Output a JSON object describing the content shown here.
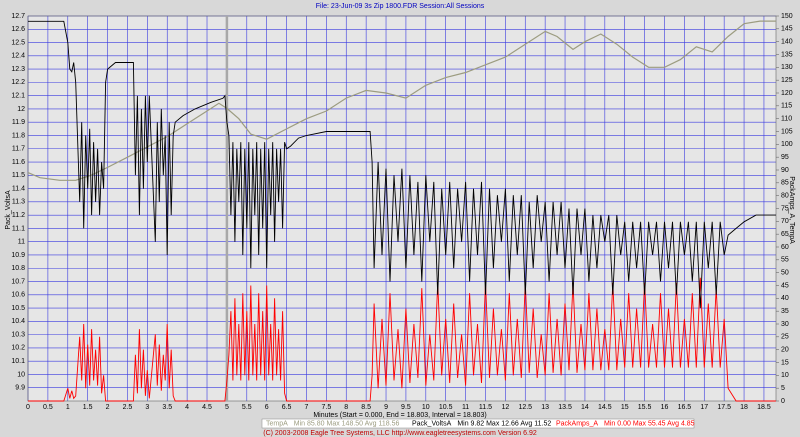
{
  "chart_data": {
    "type": "line",
    "title": "File: 23-Jun-09 3s Zip 1800.FDR   Session:All Sessions",
    "x_label": "Minutes (Start = 0.000, End = 18.803, Interval = 18.803)",
    "y_label": "Pack_VoltsA",
    "y2_label": "PackAmps_A, TempA",
    "footer": "(C) 2003-2008 Eagle Tree Systems, LLC    http://www.eagletreesystems.com    Version 6.92",
    "grid": true,
    "cursor_x": 5,
    "xlim": [
      0,
      18.803
    ],
    "xticks": [
      0,
      0.5,
      1,
      1.5,
      2,
      2.5,
      3,
      3.5,
      4,
      4.5,
      5,
      5.5,
      6,
      6.5,
      7,
      7.5,
      8,
      8.5,
      9,
      9.5,
      10,
      10.5,
      11,
      11.5,
      12,
      12.5,
      13,
      13.5,
      14,
      14.5,
      15,
      15.5,
      16,
      16.5,
      17,
      17.5,
      18,
      18.5
    ],
    "ylim": [
      9.8,
      12.7
    ],
    "yticks": [
      9.9,
      10,
      10.1,
      10.2,
      10.3,
      10.4,
      10.5,
      10.6,
      10.7,
      10.8,
      10.9,
      11,
      11.1,
      11.2,
      11.3,
      11.4,
      11.5,
      11.6,
      11.7,
      11.8,
      11.9,
      12,
      12.1,
      12.2,
      12.3,
      12.4,
      12.5,
      12.6,
      12.7
    ],
    "y2lim": [
      0,
      150
    ],
    "y2ticks": [
      0,
      5,
      10,
      15,
      20,
      25,
      30,
      35,
      40,
      45,
      50,
      55,
      60,
      65,
      70,
      75,
      80,
      85,
      90,
      95,
      100,
      105,
      110,
      115,
      120,
      125,
      130,
      135,
      140,
      145,
      150
    ],
    "x": [
      0,
      0.9,
      1,
      1.05,
      1.1,
      1.15,
      1.2,
      1.3,
      1.35,
      1.4,
      1.45,
      1.5,
      1.55,
      1.6,
      1.65,
      1.7,
      1.75,
      1.8,
      1.85,
      1.9,
      1.95,
      2,
      2.2,
      2.65,
      2.7,
      2.75,
      2.8,
      2.85,
      2.9,
      2.95,
      3,
      3.05,
      3.2,
      3.25,
      3.3,
      3.35,
      3.4,
      3.45,
      3.5,
      3.55,
      3.6,
      3.65,
      3.7,
      3.9,
      4.2,
      4.6,
      4.9,
      4.95,
      5,
      5.05,
      5.1,
      5.15,
      5.2,
      5.25,
      5.3,
      5.35,
      5.4,
      5.45,
      5.5,
      5.55,
      5.6,
      5.65,
      5.7,
      5.75,
      5.8,
      5.85,
      5.9,
      5.95,
      6,
      6.05,
      6.1,
      6.15,
      6.2,
      6.25,
      6.3,
      6.35,
      6.4,
      6.45,
      6.5,
      6.6,
      6.8,
      7,
      7.5,
      8.6,
      8.65,
      8.7,
      8.8,
      8.9,
      9,
      9.1,
      9.2,
      9.3,
      9.4,
      9.5,
      9.6,
      9.7,
      9.8,
      9.9,
      10,
      10.1,
      10.2,
      10.3,
      10.4,
      10.5,
      10.6,
      10.7,
      10.8,
      10.9,
      11,
      11.1,
      11.2,
      11.3,
      11.4,
      11.5,
      11.6,
      11.7,
      11.8,
      11.9,
      12,
      12.1,
      12.2,
      12.3,
      12.4,
      12.5,
      12.6,
      12.7,
      12.8,
      12.9,
      13,
      13.1,
      13.2,
      13.3,
      13.4,
      13.5,
      13.6,
      13.7,
      13.8,
      13.9,
      14,
      14.1,
      14.2,
      14.3,
      14.4,
      14.5,
      14.6,
      14.7,
      14.8,
      14.9,
      15,
      15.1,
      15.2,
      15.3,
      15.4,
      15.5,
      15.6,
      15.7,
      15.8,
      15.9,
      16,
      16.1,
      16.2,
      16.3,
      16.4,
      16.5,
      16.6,
      16.7,
      16.8,
      16.9,
      17,
      17.1,
      17.2,
      17.3,
      17.4,
      17.5,
      17.6,
      17.8,
      18,
      18.3,
      18.8
    ],
    "series": [
      {
        "name": "TempA",
        "color": "#9c9c80",
        "axis": "y2",
        "x": [
          0,
          0.3,
          0.8,
          1.2,
          1.6,
          2,
          2.5,
          3,
          3.5,
          4,
          4.5,
          4.8,
          5,
          5.3,
          5.6,
          6,
          6.5,
          7,
          7.5,
          8,
          8.5,
          9,
          9.5,
          10,
          10.5,
          11,
          11.5,
          12,
          12.5,
          13,
          13.3,
          13.7,
          14,
          14.4,
          14.8,
          15.2,
          15.6,
          16,
          16.4,
          16.8,
          17.2,
          17.6,
          18,
          18.4,
          18.8
        ],
        "values": [
          89,
          87,
          86,
          86,
          88,
          91,
          95,
          99,
          103,
          108,
          113,
          116,
          114,
          110,
          104,
          102,
          106,
          110,
          113,
          118,
          121,
          120,
          118,
          123,
          126,
          128,
          131,
          134,
          139,
          144,
          142,
          137,
          140,
          143,
          139,
          134,
          130,
          130,
          133,
          138,
          136,
          142,
          147,
          148,
          148
        ]
      },
      {
        "name": "Pack_VoltsA",
        "color": "#000000",
        "values": [
          12.66,
          12.66,
          12.5,
          12.3,
          12.28,
          12.35,
          12.2,
          11.3,
          11.9,
          11.1,
          11.8,
          11.4,
          11.85,
          11.2,
          11.75,
          11.3,
          11.7,
          11.2,
          11.6,
          11.4,
          12.2,
          12.3,
          12.35,
          12.35,
          11.5,
          12.1,
          11.2,
          12.0,
          11.4,
          12.1,
          11.6,
          12.1,
          11.0,
          11.9,
          11.3,
          12.0,
          11.5,
          11.8,
          10.9,
          11.9,
          11.2,
          11.8,
          11.9,
          11.95,
          12.0,
          12.05,
          12.08,
          12.1,
          11.9,
          11.8,
          11.2,
          11.75,
          11.0,
          11.7,
          11.3,
          11.75,
          10.9,
          11.7,
          11.1,
          11.75,
          10.8,
          11.7,
          11.2,
          11.75,
          10.9,
          11.7,
          11.1,
          11.75,
          10.8,
          11.7,
          11.2,
          11.75,
          11.0,
          11.7,
          11.3,
          11.7,
          11.1,
          11.75,
          11.7,
          11.72,
          11.78,
          11.8,
          11.83,
          11.83,
          11.6,
          10.8,
          11.6,
          10.9,
          11.55,
          10.7,
          11.5,
          11.0,
          11.55,
          10.8,
          11.5,
          10.9,
          11.45,
          10.7,
          11.5,
          11.0,
          11.45,
          10.6,
          11.4,
          10.9,
          11.45,
          10.8,
          11.4,
          11.0,
          11.45,
          10.7,
          11.4,
          10.9,
          11.45,
          10.6,
          11.4,
          10.8,
          11.35,
          11.0,
          11.4,
          10.7,
          11.35,
          10.9,
          11.35,
          10.6,
          11.3,
          10.8,
          11.35,
          11.0,
          11.3,
          10.7,
          11.3,
          10.9,
          11.3,
          10.8,
          11.25,
          10.6,
          11.25,
          10.9,
          11.25,
          10.7,
          11.2,
          10.8,
          11.2,
          11.0,
          11.2,
          10.6,
          11.2,
          10.9,
          11.15,
          10.7,
          11.15,
          10.8,
          11.15,
          10.6,
          11.15,
          10.9,
          11.15,
          10.7,
          11.15,
          10.8,
          11.15,
          10.6,
          11.15,
          10.9,
          11.15,
          10.7,
          11.15,
          10.5,
          11.15,
          10.8,
          11.15,
          10.6,
          11.15,
          10.9,
          11.05,
          11.1,
          11.15,
          11.2,
          11.2
        ]
      },
      {
        "name": "PackAmps_A",
        "color": "#ff0000",
        "axis": "y2",
        "values": [
          0,
          0,
          5,
          1,
          4,
          1,
          2,
          25,
          8,
          30,
          5,
          22,
          6,
          28,
          8,
          20,
          6,
          25,
          3,
          10,
          0,
          0,
          0,
          0,
          18,
          3,
          28,
          5,
          20,
          2,
          12,
          1,
          26,
          6,
          22,
          4,
          18,
          8,
          30,
          5,
          20,
          2,
          0,
          0,
          0,
          0,
          0,
          0,
          8,
          18,
          35,
          8,
          40,
          10,
          30,
          8,
          42,
          10,
          35,
          8,
          45,
          10,
          30,
          8,
          42,
          10,
          35,
          8,
          45,
          10,
          30,
          8,
          40,
          10,
          28,
          8,
          35,
          3,
          0,
          0,
          0,
          0,
          0,
          0,
          10,
          38,
          5,
          32,
          6,
          42,
          8,
          28,
          5,
          36,
          7,
          30,
          9,
          44,
          6,
          26,
          8,
          46,
          10,
          32,
          7,
          38,
          9,
          26,
          6,
          42,
          10,
          30,
          7,
          46,
          9,
          36,
          10,
          28,
          8,
          42,
          10,
          32,
          9,
          46,
          11,
          36,
          9,
          26,
          10,
          42,
          11,
          32,
          10,
          38,
          12,
          46,
          11,
          30,
          12,
          42,
          12,
          36,
          12,
          28,
          12,
          46,
          12,
          32,
          13,
          42,
          13,
          36,
          13,
          46,
          13,
          30,
          13,
          42,
          13,
          36,
          13,
          46,
          13,
          32,
          13,
          42,
          13,
          48,
          13,
          38,
          13,
          44,
          13,
          32,
          5,
          0,
          0,
          0,
          0
        ]
      }
    ],
    "legend_stats": [
      "Min 85.80   Max 148.50   Avg 118.56",
      "Min 9.82   Max 12.66   Avg 11.52",
      "Min 0.00   Max 55.45   Avg 4.85"
    ]
  }
}
